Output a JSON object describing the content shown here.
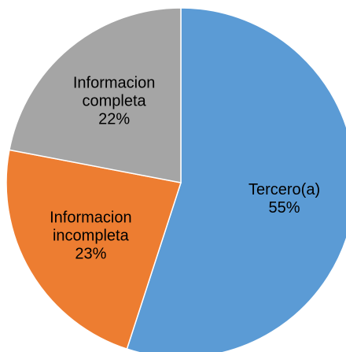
{
  "chart_data": {
    "type": "pie",
    "categories": [
      "Tercero(a)",
      "Informacion incompleta",
      "Informacion completa"
    ],
    "values": [
      55,
      23,
      22
    ],
    "value_labels": [
      "55%",
      "23%",
      "22%"
    ],
    "colors": [
      "#5b9bd5",
      "#ed7d31",
      "#a5a5a5"
    ],
    "start_angle": 0,
    "direction": "clockwise"
  }
}
